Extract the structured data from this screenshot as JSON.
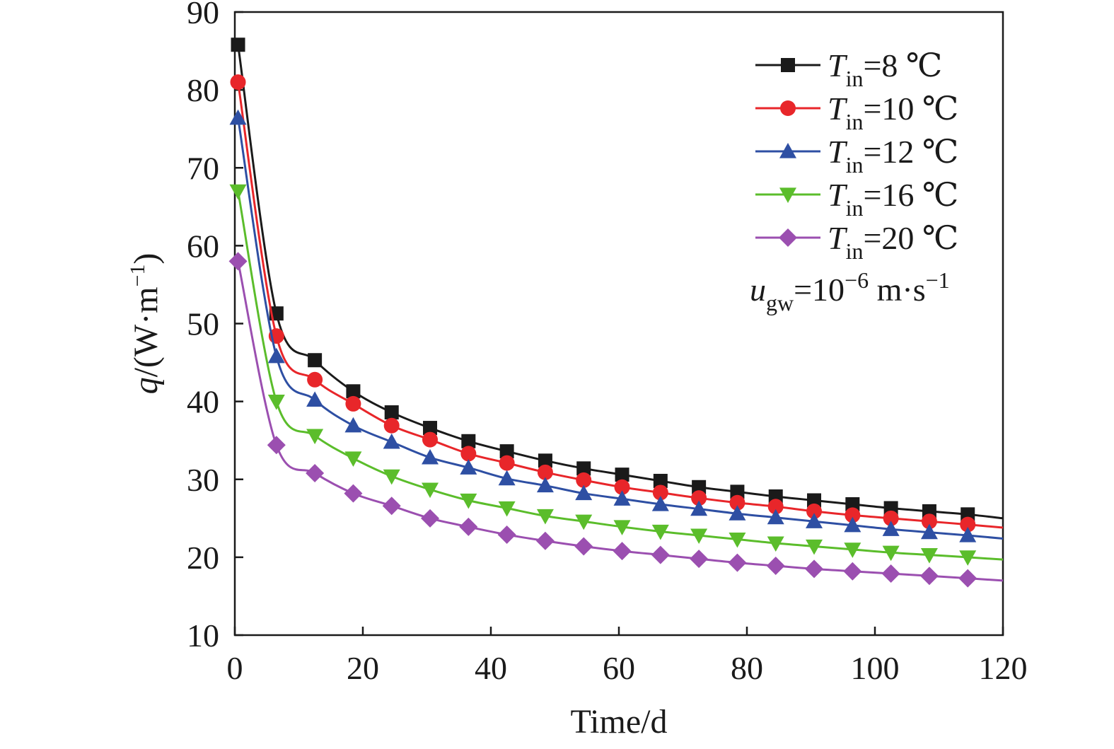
{
  "chart_data": {
    "type": "line",
    "xlabel": "Time/d",
    "ylabel": "q/(W·m−1)",
    "ylabel_parts": {
      "var": "q",
      "unit_open": "/(W·m",
      "unit_sup": "−1",
      "unit_close": ")"
    },
    "xlim": [
      0,
      120
    ],
    "ylim": [
      10,
      90
    ],
    "xticks": [
      0,
      20,
      40,
      60,
      80,
      100,
      120
    ],
    "yticks": [
      10,
      20,
      30,
      40,
      50,
      60,
      70,
      80,
      90
    ],
    "grid": false,
    "legend_position": "top-right",
    "annotation": {
      "text": "ugw=10−6 m·s−1",
      "parts": {
        "var": "u",
        "sub": "gw",
        "mid": "=10",
        "sup1": "−6",
        "unit": " m·s",
        "sup2": "−1"
      }
    },
    "x": [
      0.5,
      6.5,
      12.5,
      18.5,
      24.5,
      30.5,
      36.5,
      42.5,
      48.5,
      54.5,
      60.5,
      66.5,
      72.5,
      78.5,
      84.5,
      90.5,
      96.5,
      102.5,
      108.5,
      114.5
    ],
    "series": [
      {
        "name": "Tin=8 ℃",
        "label_parts": {
          "var": "T",
          "sub": "in",
          "rest": "=8 ℃"
        },
        "color": "#1a1a1a",
        "marker": "square",
        "values": [
          85.8,
          51.3,
          45.3,
          41.3,
          38.6,
          36.6,
          34.9,
          33.6,
          32.4,
          31.4,
          30.6,
          29.8,
          29.0,
          28.4,
          27.8,
          27.3,
          26.8,
          26.3,
          25.9,
          25.5
        ],
        "end": 25.0
      },
      {
        "name": "Tin=10 ℃",
        "label_parts": {
          "var": "T",
          "sub": "in",
          "rest": "=10 ℃"
        },
        "color": "#e8262a",
        "marker": "circle",
        "values": [
          81.0,
          48.4,
          42.8,
          39.7,
          36.9,
          35.1,
          33.3,
          32.1,
          30.9,
          29.9,
          29.0,
          28.3,
          27.6,
          27.0,
          26.5,
          25.9,
          25.4,
          25.0,
          24.6,
          24.2
        ],
        "end": 23.8
      },
      {
        "name": "Tin=12 ℃",
        "label_parts": {
          "var": "T",
          "sub": "in",
          "rest": "=12 ℃"
        },
        "color": "#2e4fa3",
        "marker": "triangle-up",
        "values": [
          76.4,
          45.8,
          40.2,
          36.9,
          34.8,
          32.8,
          31.5,
          30.1,
          29.2,
          28.2,
          27.5,
          26.8,
          26.2,
          25.6,
          25.1,
          24.6,
          24.1,
          23.6,
          23.2,
          22.8
        ],
        "end": 22.4
      },
      {
        "name": "Tin=16 ℃",
        "label_parts": {
          "var": "T",
          "sub": "in",
          "rest": "=16 ℃"
        },
        "color": "#5bbd2b",
        "marker": "triangle-down",
        "values": [
          67.0,
          40.0,
          35.6,
          32.7,
          30.4,
          28.7,
          27.3,
          26.3,
          25.3,
          24.6,
          23.9,
          23.3,
          22.8,
          22.3,
          21.8,
          21.4,
          21.0,
          20.6,
          20.3,
          20.0
        ],
        "end": 19.7
      },
      {
        "name": "Tin=20 ℃",
        "label_parts": {
          "var": "T",
          "sub": "in",
          "rest": "=20 ℃"
        },
        "color": "#9b4fb0",
        "marker": "diamond",
        "values": [
          58.0,
          34.4,
          30.8,
          28.2,
          26.6,
          25.0,
          23.9,
          22.9,
          22.1,
          21.4,
          20.8,
          20.3,
          19.8,
          19.3,
          18.9,
          18.5,
          18.2,
          17.9,
          17.6,
          17.3
        ],
        "end": 17.0
      }
    ]
  }
}
